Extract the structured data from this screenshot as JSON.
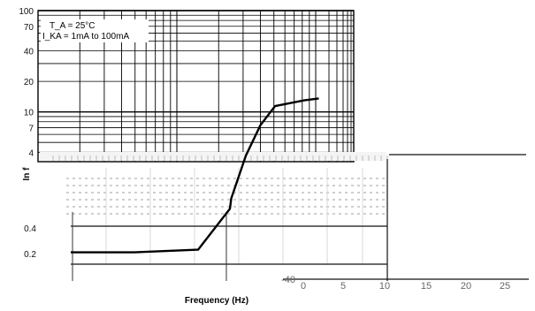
{
  "chart_data": {
    "type": "line",
    "title": "",
    "xlabel": "Frequency (Hz)",
    "ylabel": "In f",
    "scale_y": "log",
    "ylim": [
      0.1,
      100
    ],
    "top_yticks": [
      "100",
      "70",
      "40",
      "20",
      "10",
      "7",
      "4"
    ],
    "bottom_yticks": [
      "0.4",
      "0.2"
    ],
    "bottom_x_ticks": [
      "0",
      "5",
      "10",
      "15",
      "20",
      "25"
    ],
    "bottom_x_extra": "-40",
    "annotations": [
      "T_A = 25°C",
      "I_KA = 1mA  to  100mA"
    ],
    "series": [
      {
        "x": [
          0,
          10,
          20,
          30,
          40,
          50,
          55,
          60,
          65,
          70,
          80,
          85
        ],
        "y": [
          0.21,
          0.21,
          0.21,
          0.22,
          0.23,
          0.55,
          1.4,
          3.7,
          7.4,
          11.4,
          13,
          13.6
        ]
      }
    ],
    "grid": true
  }
}
